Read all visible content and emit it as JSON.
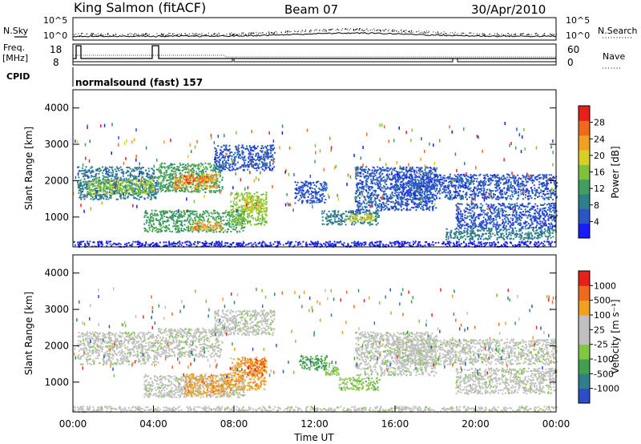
{
  "header": {
    "station": "King Salmon (fitACF)",
    "beam": "Beam 07",
    "date": "30/Apr/2010"
  },
  "strip_panels": {
    "nsky_label": "N.Sky",
    "nsky_ticks": [
      "10^5",
      "10^0"
    ],
    "nsearch_label": "N.Search",
    "nsearch_ticks": [
      "10^5",
      "10^0"
    ],
    "freq_label_1": "Freq.",
    "freq_label_2": "[MHz]",
    "freq_ticks": [
      "18",
      "8"
    ],
    "nave_label": "Nave",
    "nave_ticks": [
      "60",
      "0"
    ],
    "cpid_label": "CPID",
    "cpid_value": "normalsound (fast) 157"
  },
  "colors": {
    "power": [
      "#1a1aff",
      "#2a55c8",
      "#2f7f8a",
      "#3fa060",
      "#7fc23a",
      "#d8d020",
      "#f2a020",
      "#f06a1a",
      "#e8201a"
    ],
    "velocity": [
      "#2a4ec8",
      "#2f7f8a",
      "#3fa050",
      "#80c840",
      "#c0c0c0",
      "#c0c0c0",
      "#f2a020",
      "#f06a1a",
      "#e8201a"
    ]
  },
  "chart_data": [
    {
      "type": "heatmap",
      "panel": "power",
      "ylabel": "Slant Range [km]",
      "yticks": [
        "4000",
        "3000",
        "2000",
        "1000"
      ],
      "ylim": [
        180,
        4500
      ],
      "xlim": [
        0,
        24
      ],
      "colorbar_label": "Power [dB]",
      "colorbar_ticks": [
        "28",
        "24",
        "20",
        "16",
        "12",
        "8",
        "4"
      ],
      "regions": [
        {
          "x": [
            0.2,
            4.2
          ],
          "y": [
            1500,
            2400
          ],
          "level": 2
        },
        {
          "x": [
            0.7,
            4.0
          ],
          "y": [
            1650,
            2050
          ],
          "level": 4
        },
        {
          "x": [
            4.2,
            7.4
          ],
          "y": [
            1700,
            2500
          ],
          "level": 3
        },
        {
          "x": [
            5.0,
            7.2
          ],
          "y": [
            1800,
            2200
          ],
          "level": 6
        },
        {
          "x": [
            5.5,
            6.8
          ],
          "y": [
            1950,
            2150
          ],
          "level": 7
        },
        {
          "x": [
            3.5,
            8.5
          ],
          "y": [
            600,
            1200
          ],
          "level": 3
        },
        {
          "x": [
            5.8,
            7.4
          ],
          "y": [
            650,
            900
          ],
          "level": 6
        },
        {
          "x": [
            7.8,
            9.6
          ],
          "y": [
            800,
            1700
          ],
          "level": 4
        },
        {
          "x": [
            8.5,
            9.5
          ],
          "y": [
            1200,
            1600
          ],
          "level": 5
        },
        {
          "x": [
            7.0,
            10.0
          ],
          "y": [
            2300,
            3000
          ],
          "level": 1
        },
        {
          "x": [
            11.0,
            12.6
          ],
          "y": [
            1400,
            2000
          ],
          "level": 1
        },
        {
          "x": [
            12.3,
            15.2
          ],
          "y": [
            800,
            1200
          ],
          "level": 2
        },
        {
          "x": [
            13.5,
            15.0
          ],
          "y": [
            900,
            1100
          ],
          "level": 5
        },
        {
          "x": [
            14.0,
            18.0
          ],
          "y": [
            1200,
            2400
          ],
          "level": 1
        },
        {
          "x": [
            16.0,
            24.0
          ],
          "y": [
            1500,
            2200
          ],
          "level": 1
        },
        {
          "x": [
            19.0,
            24.0
          ],
          "y": [
            700,
            1400
          ],
          "level": 1
        },
        {
          "x": [
            18.5,
            24.0
          ],
          "y": [
            400,
            700
          ],
          "level": 2
        },
        {
          "x": [
            0.0,
            24.0
          ],
          "y": [
            200,
            350
          ],
          "level": 0
        }
      ]
    },
    {
      "type": "heatmap",
      "panel": "velocity",
      "ylabel": "Slant Range [km]",
      "yticks": [
        "4000",
        "3000",
        "2000",
        "1000"
      ],
      "ylim": [
        180,
        4500
      ],
      "xlim": [
        0,
        24
      ],
      "xticks": [
        "00:00",
        "04:00",
        "08:00",
        "12:00",
        "16:00",
        "20:00",
        "00:00"
      ],
      "xlabel": "Time UT",
      "colorbar_label": "Velocity [m s⁻¹]",
      "colorbar_ticks": [
        "1000",
        "500",
        "100",
        "25",
        "-25",
        "-100",
        "-500",
        "-1000"
      ],
      "regions": [
        {
          "x": [
            0.2,
            4.2
          ],
          "y": [
            1500,
            2400
          ],
          "level": 4
        },
        {
          "x": [
            4.2,
            7.4
          ],
          "y": [
            1700,
            2500
          ],
          "level": 4
        },
        {
          "x": [
            3.5,
            8.5
          ],
          "y": [
            600,
            1200
          ],
          "level": 4
        },
        {
          "x": [
            5.5,
            7.8
          ],
          "y": [
            650,
            1250
          ],
          "level": 6
        },
        {
          "x": [
            7.8,
            9.6
          ],
          "y": [
            800,
            1700
          ],
          "level": 6
        },
        {
          "x": [
            8.6,
            9.5
          ],
          "y": [
            1200,
            1650
          ],
          "level": 7
        },
        {
          "x": [
            7.0,
            10.0
          ],
          "y": [
            2300,
            3000
          ],
          "level": 4
        },
        {
          "x": [
            11.2,
            12.6
          ],
          "y": [
            1350,
            1750
          ],
          "level": 2
        },
        {
          "x": [
            12.5,
            13.2
          ],
          "y": [
            1200,
            1550
          ],
          "level": 3
        },
        {
          "x": [
            13.2,
            15.2
          ],
          "y": [
            800,
            1150
          ],
          "level": 3
        },
        {
          "x": [
            14.0,
            18.0
          ],
          "y": [
            1200,
            2400
          ],
          "level": 4
        },
        {
          "x": [
            16.0,
            24.0
          ],
          "y": [
            1500,
            2200
          ],
          "level": 4
        },
        {
          "x": [
            19.0,
            24.0
          ],
          "y": [
            700,
            1400
          ],
          "level": 4
        },
        {
          "x": [
            0.0,
            24.0
          ],
          "y": [
            200,
            350
          ],
          "level": 4
        }
      ]
    }
  ]
}
